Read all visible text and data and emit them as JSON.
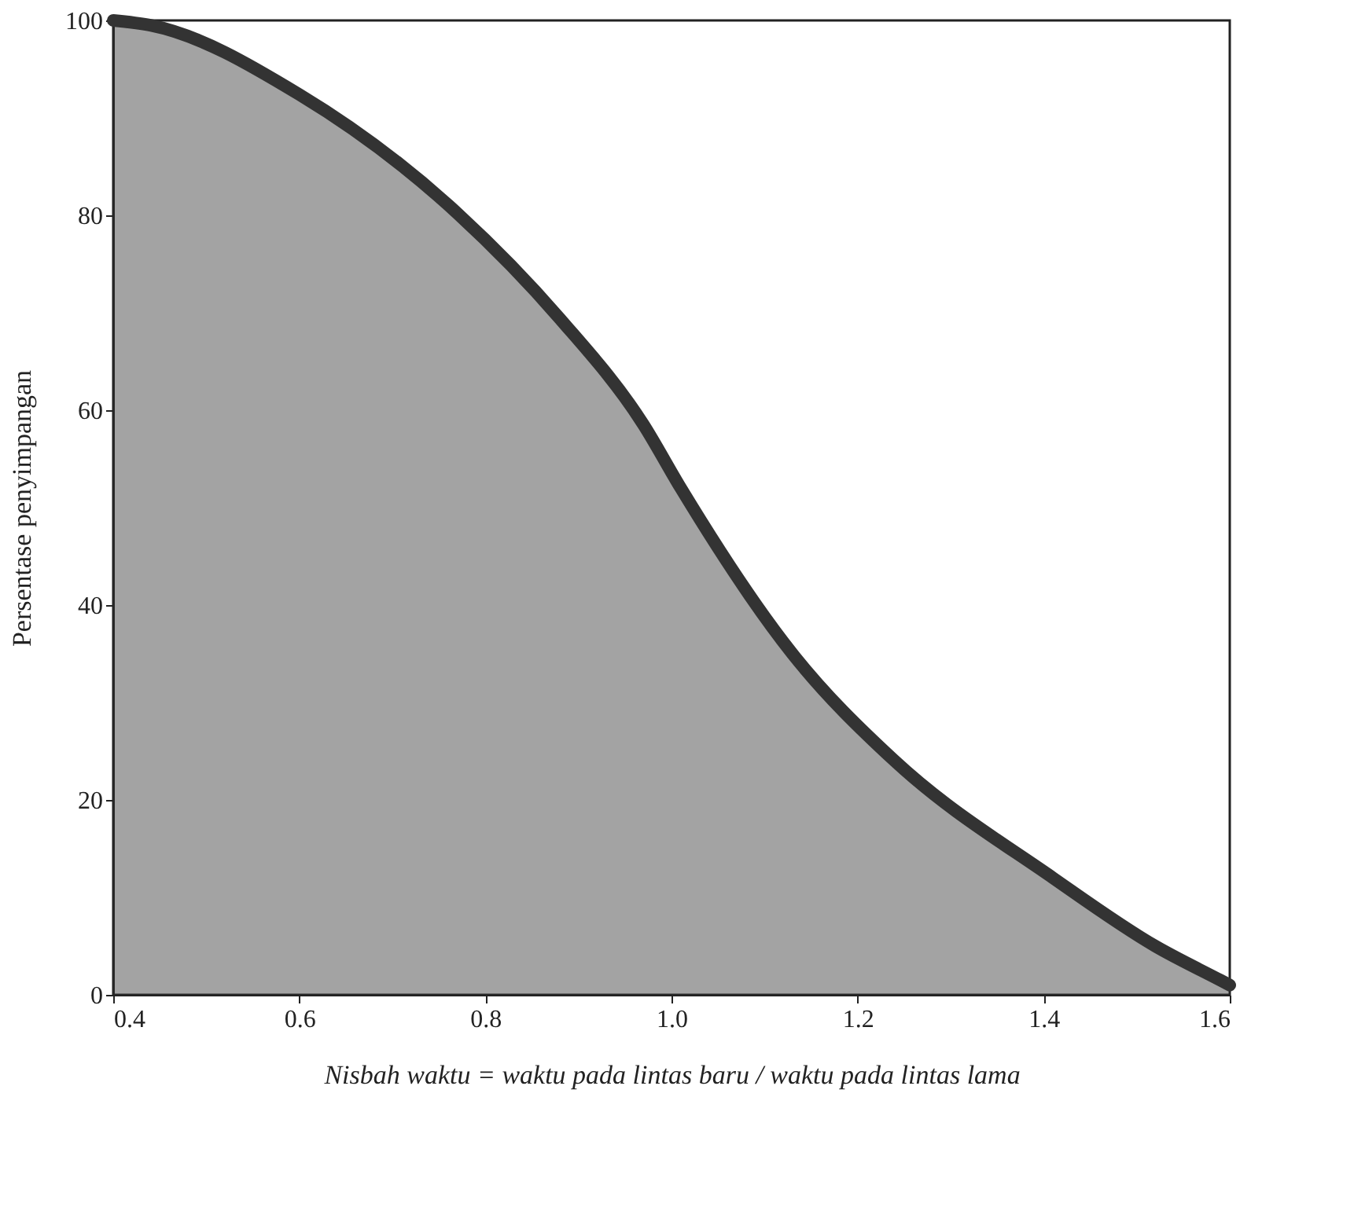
{
  "chart_data": {
    "type": "area",
    "ylabel": "Persentase penyimpangan",
    "xlabel": "Nisbah waktu = waktu pada lintas baru / waktu pada lintas lama",
    "x": [
      0.4,
      0.44,
      0.6,
      0.77,
      0.88,
      0.97,
      1.01,
      1.13,
      1.24,
      1.41,
      1.52,
      1.59,
      1.6
    ],
    "series": [
      {
        "color": "#333333",
        "values": [
          100,
          99.5,
          92.4,
          80.2,
          69.4,
          58.5,
          52,
          35,
          24,
          12,
          5,
          1.5,
          1
        ]
      }
    ],
    "xlim": [
      0.4,
      1.6
    ],
    "xticks": [
      {
        "value": 0.4,
        "label": "0.4"
      },
      {
        "value": 0.6,
        "label": "0.6"
      },
      {
        "value": 0.8,
        "label": "0.8"
      },
      {
        "value": 1.0,
        "label": "1.0"
      },
      {
        "value": 1.2,
        "label": "1.2"
      },
      {
        "value": 1.4,
        "label": "1.4"
      },
      {
        "value": 1.6,
        "label": "1.6"
      }
    ],
    "ylim": [
      0,
      100
    ],
    "yticks": [
      0,
      20,
      40,
      60,
      80,
      100
    ],
    "grid": false
  }
}
